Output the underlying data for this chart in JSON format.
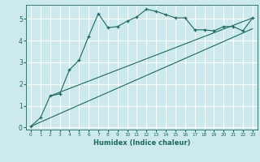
{
  "title": "",
  "xlabel": "Humidex (Indice chaleur)",
  "bg_color": "#cce9ed",
  "line_color": "#1a6b5a",
  "grid_color": "#ffffff",
  "xlim": [
    -0.5,
    23.5
  ],
  "ylim": [
    -0.1,
    5.65
  ],
  "yticks": [
    0,
    1,
    2,
    3,
    4,
    5
  ],
  "xticks": [
    0,
    1,
    2,
    3,
    4,
    5,
    6,
    7,
    8,
    9,
    10,
    11,
    12,
    13,
    14,
    15,
    16,
    17,
    18,
    19,
    20,
    21,
    22,
    23
  ],
  "curve1_x": [
    0,
    1,
    2,
    3,
    4,
    5,
    6,
    7,
    8,
    9,
    10,
    11,
    12,
    13,
    14,
    15,
    16,
    17,
    18,
    19,
    20,
    21,
    22,
    23
  ],
  "curve1_y": [
    0.05,
    0.45,
    1.45,
    1.55,
    2.65,
    3.1,
    4.2,
    5.25,
    4.6,
    4.65,
    4.9,
    5.1,
    5.45,
    5.35,
    5.2,
    5.05,
    5.05,
    4.5,
    4.5,
    4.45,
    4.65,
    4.65,
    4.45,
    5.05
  ],
  "line1_x": [
    0,
    23
  ],
  "line1_y": [
    0.05,
    4.55
  ],
  "line2_x": [
    2,
    23
  ],
  "line2_y": [
    1.45,
    5.05
  ]
}
